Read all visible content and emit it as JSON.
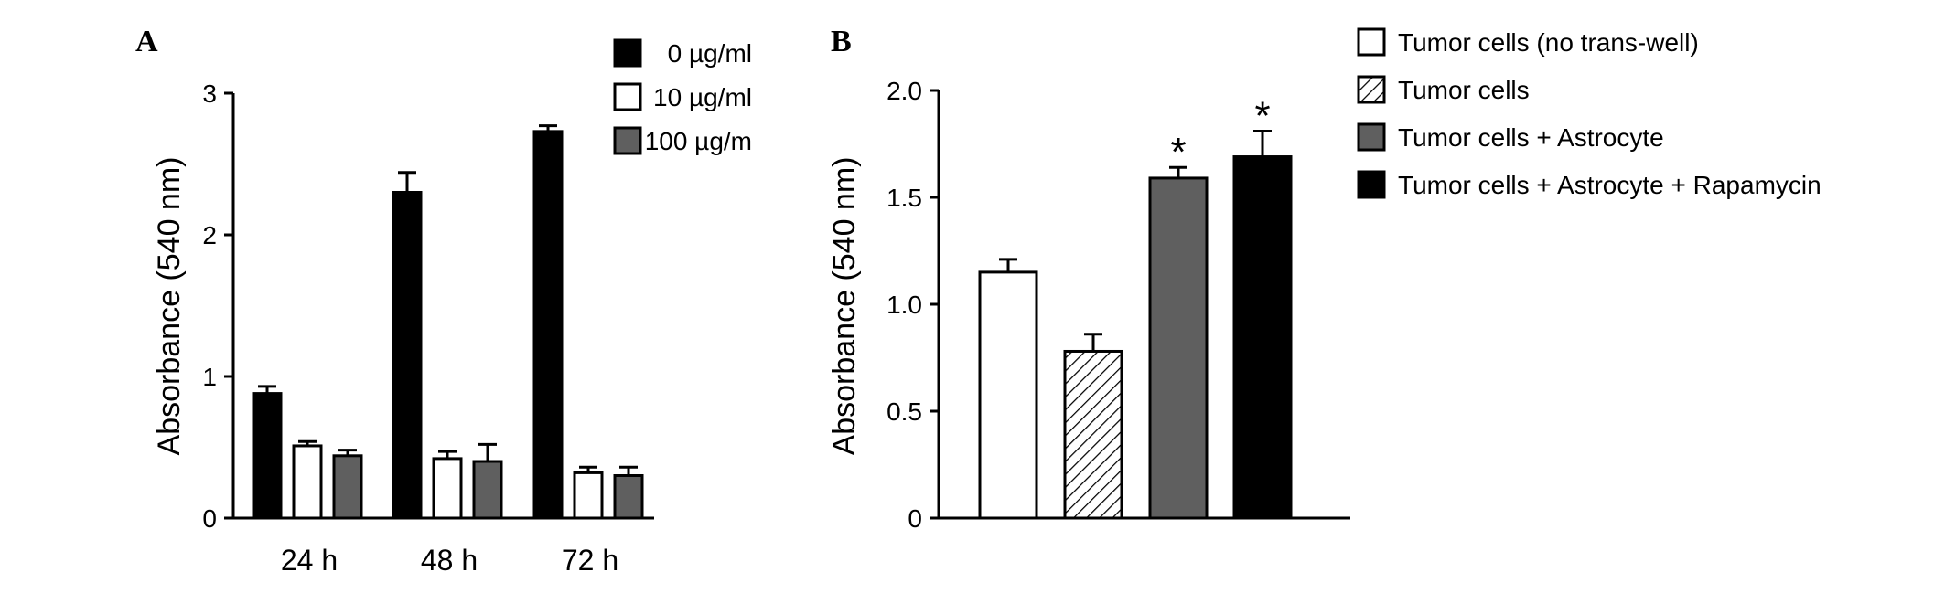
{
  "panels": {
    "a_letter": "A",
    "b_letter": "B"
  },
  "chart_data": [
    {
      "type": "bar",
      "panel": "A",
      "categories": [
        "24 h",
        "48 h",
        "72 h"
      ],
      "ylabel": "Absorbance (540 nm)",
      "xlabel": "",
      "ylim": [
        0,
        3
      ],
      "yticks": [
        "0",
        "1",
        "2",
        "3"
      ],
      "legend_placement": "top-right",
      "series": [
        {
          "name": "0 µg/ml",
          "color": "#000000",
          "values": [
            0.88,
            2.3,
            2.73
          ],
          "errors": [
            0.05,
            0.14,
            0.04
          ]
        },
        {
          "name": "10 µg/ml",
          "color": "#ffffff",
          "values": [
            0.51,
            0.42,
            0.32
          ],
          "errors": [
            0.03,
            0.05,
            0.04
          ]
        },
        {
          "name": "100 µg/m",
          "color": "#5f5f5f",
          "values": [
            0.44,
            0.4,
            0.3
          ],
          "errors": [
            0.04,
            0.12,
            0.06
          ]
        }
      ]
    },
    {
      "type": "bar",
      "panel": "B",
      "categories": [
        "Tumor cells (no trans-well)",
        "Tumor cells",
        "Tumor cells + Astrocyte",
        "Tumor cells + Astrocyte + Rapamycin"
      ],
      "values": [
        1.15,
        0.78,
        1.59,
        1.69
      ],
      "errors": [
        0.06,
        0.08,
        0.05,
        0.12
      ],
      "fills": [
        "#ffffff",
        "hatch",
        "#5f5f5f",
        "#000000"
      ],
      "significance": [
        "",
        "",
        "*",
        "*"
      ],
      "ylabel": "Absorbance (540 nm)",
      "xlabel": "",
      "ylim": [
        0,
        2.0
      ],
      "yticks": [
        "0",
        "0.5",
        "1.0",
        "1.5",
        "2.0"
      ],
      "legend_placement": "top-right"
    }
  ]
}
